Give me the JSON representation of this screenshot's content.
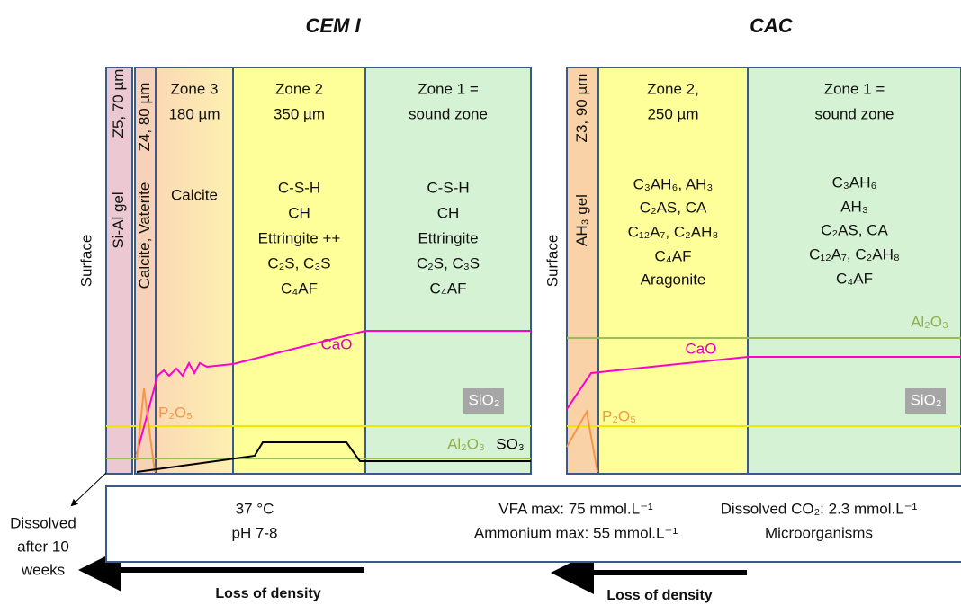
{
  "panels": [
    {
      "title": "CEM I",
      "surface": "Surface",
      "strips": [
        {
          "label": "Z5, 70 µm",
          "phase": "Si-Al gel"
        },
        {
          "label": "Z4, 80 µm",
          "phase": "Calcite, Vaterite"
        }
      ],
      "zones": [
        {
          "heading": [
            "Zone 3",
            "180 µm"
          ],
          "phases": [
            "Calcite"
          ]
        },
        {
          "heading": [
            "Zone 2",
            "350 µm"
          ],
          "phases": [
            "C-S-H",
            "CH",
            "Ettringite ++",
            "C₂S, C₃S",
            "C₄AF"
          ]
        },
        {
          "heading": [
            "Zone 1 =",
            "sound zone"
          ],
          "phases": [
            "C-S-H",
            "CH",
            "Ettringite",
            "C₂S, C₃S",
            "C₄AF"
          ]
        }
      ],
      "species": [
        "CaO",
        "P₂O₅",
        "SiO₂",
        "Al₂O₃",
        "SO₃"
      ],
      "arrow": "Loss of density"
    },
    {
      "title": "CAC",
      "surface": "Surface",
      "strips": [
        {
          "label": "Z3, 90 µm",
          "phase": "AH₃ gel"
        }
      ],
      "zones": [
        {
          "heading": [
            "Zone 2,",
            "250 µm"
          ],
          "phases": [
            "C₃AH₆, AH₃",
            "C₂AS, CA",
            "C₁₂A₇, C₂AH₈",
            "C₄AF",
            "Aragonite"
          ]
        },
        {
          "heading": [
            "Zone 1 =",
            "sound zone"
          ],
          "phases": [
            "C₃AH₆",
            "AH₃",
            "C₂AS, CA",
            "C₁₂A₇, C₂AH₈",
            "C₄AF"
          ]
        }
      ],
      "species": [
        "Al₂O₃",
        "CaO",
        "P₂O₅",
        "SiO₂"
      ],
      "arrow": "Loss of density"
    }
  ],
  "conditions": [
    [
      "37 °C",
      "pH 7-8"
    ],
    [
      "VFA max: 75 mmol.L⁻¹",
      "Ammonium max: 55 mmol.L⁻¹"
    ],
    [
      "Dissolved CO₂: 2.3 mmol.L⁻¹",
      "Microorganisms"
    ]
  ],
  "note": [
    "Dissolved",
    "after 10",
    "weeks"
  ]
}
